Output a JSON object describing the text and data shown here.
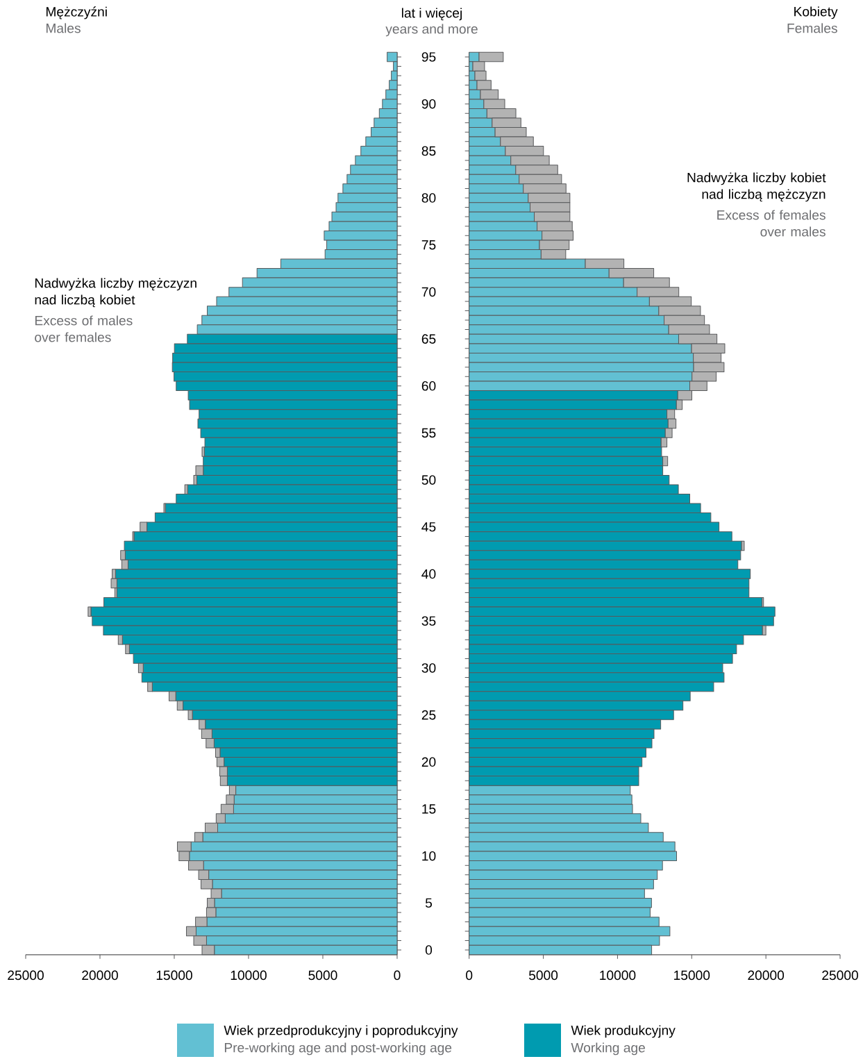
{
  "chart_data": [
    {
      "type": "bar",
      "orientation": "horizontal",
      "stacked": true,
      "title": "Mężczyźni",
      "subtitle": "Males",
      "ylabel": "lat i więcej",
      "categories": [
        "95",
        null,
        null,
        null,
        null,
        "90",
        null,
        null,
        null,
        null,
        "85",
        null,
        null,
        null,
        null,
        "80",
        null,
        null,
        null,
        null,
        "75",
        null,
        null,
        null,
        null,
        "70",
        null,
        null,
        null,
        null,
        "65",
        null,
        null,
        null,
        null,
        "60",
        null,
        null,
        null,
        null,
        "55",
        null,
        null,
        null,
        null,
        "50",
        null,
        null,
        null,
        null,
        "45",
        null,
        null,
        null,
        null,
        "40",
        null,
        null,
        null,
        null,
        "35",
        null,
        null,
        null,
        null,
        "30",
        null,
        null,
        null,
        null,
        "25",
        null,
        null,
        null,
        null,
        "20",
        null,
        null,
        null,
        null,
        "15",
        null,
        null,
        null,
        null,
        "10",
        null,
        null,
        null,
        null,
        "5",
        null,
        null,
        null,
        null,
        "0"
      ],
      "series": [
        {
          "name": "Wiek przedprodukcyjny i poprodukcyjny",
          "color": "#62c0d3",
          "values": [
            670,
            250,
            390,
            530,
            760,
            990,
            1200,
            1550,
            1750,
            2110,
            2440,
            2810,
            3140,
            3370,
            3650,
            3980,
            4110,
            4390,
            4580,
            4910,
            4740,
            4850,
            7830,
            9430,
            10410,
            11320,
            12150,
            12780,
            13140,
            13450,
            null,
            null,
            null,
            null,
            null,
            null,
            null,
            null,
            null,
            null,
            null,
            null,
            null,
            null,
            null,
            null,
            null,
            null,
            null,
            null,
            null,
            null,
            null,
            null,
            null,
            null,
            null,
            null,
            null,
            null,
            null,
            null,
            null,
            null,
            null,
            null,
            null,
            null,
            null,
            null,
            null,
            null,
            null,
            null,
            null,
            null,
            null,
            null,
            10860,
            10970,
            11010,
            11570,
            12080,
            13080,
            13870,
            13980,
            13030,
            12680,
            12430,
            11820,
            12290,
            12200,
            12800,
            13530,
            12830,
            12300
          ]
        },
        {
          "name": "Wiek produkcyjny",
          "color": "#009bb0",
          "values": [
            null,
            null,
            null,
            null,
            null,
            null,
            null,
            null,
            null,
            null,
            null,
            null,
            null,
            null,
            null,
            null,
            null,
            null,
            null,
            null,
            null,
            null,
            null,
            null,
            null,
            null,
            null,
            null,
            null,
            null,
            14120,
            14990,
            15110,
            15130,
            15020,
            14870,
            14060,
            13970,
            13330,
            13410,
            13220,
            12940,
            12970,
            13050,
            13050,
            13480,
            14100,
            14870,
            15600,
            16290,
            16840,
            17710,
            18360,
            18300,
            18110,
            18950,
            18860,
            18860,
            19740,
            20610,
            20520,
            19770,
            18490,
            18020,
            17750,
            17090,
            17180,
            16480,
            14900,
            14410,
            13780,
            12910,
            12460,
            12320,
            11920,
            11650,
            11430,
            11430,
            null,
            null,
            null,
            null,
            null,
            null,
            null,
            null,
            null,
            null,
            null,
            null,
            null,
            null,
            null,
            null,
            null,
            null
          ]
        },
        {
          "color": "#b3b3b3",
          "values": [
            null,
            null,
            null,
            null,
            null,
            null,
            null,
            null,
            null,
            null,
            null,
            null,
            null,
            null,
            null,
            null,
            null,
            null,
            null,
            null,
            null,
            null,
            null,
            null,
            null,
            null,
            null,
            null,
            null,
            null,
            null,
            null,
            null,
            null,
            null,
            null,
            null,
            null,
            null,
            null,
            null,
            null,
            160,
            null,
            500,
            210,
            190,
            null,
            100,
            null,
            460,
            90,
            null,
            310,
            420,
            230,
            390,
            140,
            null,
            190,
            null,
            null,
            280,
            260,
            null,
            320,
            null,
            310,
            450,
            390,
            280,
            420,
            700,
            540,
            300,
            480,
            510,
            470,
            430,
            530,
            840,
            610,
            840,
            540,
            920,
            700,
            1010,
            680,
            770,
            700,
            490,
            630,
            770,
            650,
            860,
            830
          ]
        }
      ],
      "xlim": [
        25000,
        0
      ],
      "xticks": [
        0,
        5000,
        10000,
        15000,
        20000,
        25000
      ],
      "tick_labels": "x",
      "legend": "bottom",
      "annotations": [
        "Nadwyżka liczby mężczyzn nad liczbą kobiet",
        "Excess of males over females"
      ]
    },
    {
      "type": "bar",
      "orientation": "horizontal",
      "stacked": true,
      "title": "Kobiety",
      "subtitle": "Females",
      "ylabel": "years and more",
      "categories": [
        "95",
        null,
        null,
        null,
        null,
        "90",
        null,
        null,
        null,
        null,
        "85",
        null,
        null,
        null,
        null,
        "80",
        null,
        null,
        null,
        null,
        "75",
        null,
        null,
        null,
        null,
        "70",
        null,
        null,
        null,
        null,
        "65",
        null,
        null,
        null,
        null,
        "60",
        null,
        null,
        null,
        null,
        "55",
        null,
        null,
        null,
        null,
        "50",
        null,
        null,
        null,
        null,
        "45",
        null,
        null,
        null,
        null,
        "40",
        null,
        null,
        null,
        null,
        "35",
        null,
        null,
        null,
        null,
        "30",
        null,
        null,
        null,
        null,
        "25",
        null,
        null,
        null,
        null,
        "20",
        null,
        null,
        null,
        null,
        "15",
        null,
        null,
        null,
        null,
        "10",
        null,
        null,
        null,
        null,
        "5",
        null,
        null,
        null,
        null,
        "0"
      ],
      "series": [
        {
          "name": "Pre-working age and post-working age",
          "color": "#62c0d3",
          "values": [
            670,
            250,
            390,
            530,
            760,
            990,
            1200,
            1550,
            1750,
            2110,
            2440,
            2810,
            3140,
            3370,
            3650,
            3980,
            4110,
            4390,
            4580,
            4910,
            4740,
            4850,
            7830,
            9430,
            10410,
            11320,
            12150,
            12780,
            13140,
            13450,
            14120,
            14990,
            15110,
            15130,
            15020,
            14870,
            null,
            null,
            null,
            null,
            null,
            null,
            null,
            null,
            null,
            null,
            null,
            null,
            null,
            null,
            null,
            null,
            null,
            null,
            null,
            null,
            null,
            null,
            null,
            null,
            null,
            null,
            null,
            null,
            null,
            null,
            null,
            null,
            null,
            null,
            null,
            null,
            null,
            null,
            null,
            null,
            null,
            null,
            10860,
            10970,
            11010,
            11570,
            12080,
            13080,
            13870,
            13980,
            13030,
            12680,
            12430,
            11820,
            12290,
            12200,
            12800,
            13530,
            12830,
            12300
          ]
        },
        {
          "name": "Working age",
          "color": "#009bb0",
          "values": [
            null,
            null,
            null,
            null,
            null,
            null,
            null,
            null,
            null,
            null,
            null,
            null,
            null,
            null,
            null,
            null,
            null,
            null,
            null,
            null,
            null,
            null,
            null,
            null,
            null,
            null,
            null,
            null,
            null,
            null,
            null,
            null,
            null,
            null,
            null,
            null,
            14060,
            13970,
            13330,
            13410,
            13220,
            12940,
            12970,
            13050,
            13050,
            13480,
            14100,
            14870,
            15600,
            16290,
            16840,
            17710,
            18360,
            18300,
            18110,
            18950,
            18860,
            18860,
            19740,
            20610,
            20520,
            19770,
            18490,
            18020,
            17750,
            17090,
            17180,
            16480,
            14900,
            14410,
            13780,
            12910,
            12460,
            12320,
            11920,
            11650,
            11430,
            11430,
            null,
            null,
            null,
            null,
            null,
            null,
            null,
            null,
            null,
            null,
            null,
            null,
            null,
            null,
            null,
            null,
            null,
            null
          ]
        },
        {
          "color": "#b3b3b3",
          "values": [
            1630,
            790,
            750,
            950,
            1200,
            1410,
            1950,
            1940,
            2100,
            2220,
            2570,
            2590,
            2830,
            2860,
            2880,
            2810,
            2680,
            2400,
            2370,
            2100,
            2000,
            1660,
            2600,
            3010,
            3090,
            2810,
            2820,
            2810,
            2720,
            2750,
            2580,
            2240,
            1870,
            2050,
            1630,
            1160,
            950,
            390,
            520,
            530,
            460,
            390,
            null,
            330,
            null,
            null,
            null,
            null,
            null,
            null,
            null,
            null,
            180,
            null,
            null,
            null,
            null,
            null,
            100,
            null,
            null,
            230,
            null,
            null,
            null,
            null,
            null,
            null,
            null,
            null,
            null,
            null,
            null,
            null,
            null,
            null,
            null,
            null,
            null,
            null,
            null,
            null,
            null,
            null,
            null,
            null,
            null,
            null,
            null,
            null,
            null,
            null,
            null,
            null,
            null,
            null
          ]
        }
      ],
      "xlim": [
        0,
        25000
      ],
      "xticks": [
        0,
        5000,
        10000,
        15000,
        20000,
        25000
      ],
      "legend": "bottom",
      "annotations": [
        "Nadwyżka liczby kobiet nad liczbą mężczyzn",
        "Excess of females over males"
      ]
    }
  ]
}
